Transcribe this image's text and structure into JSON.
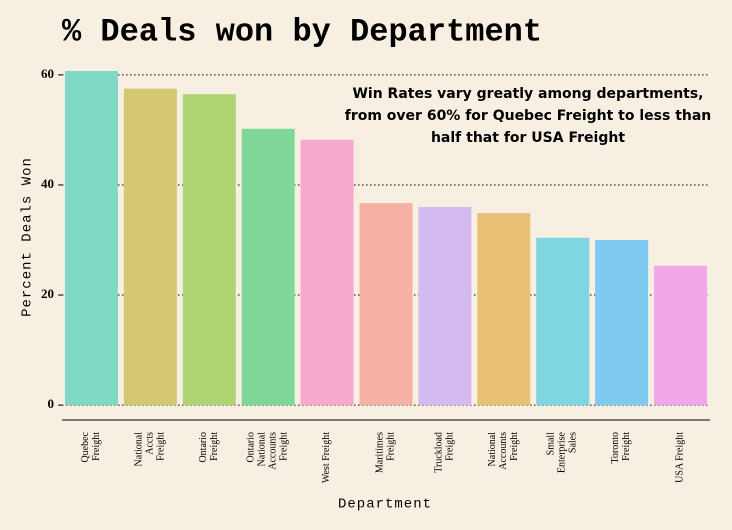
{
  "chart_data": {
    "type": "bar",
    "title": "% Deals won by Department",
    "xlabel": "Department",
    "ylabel": "Percent Deals Won",
    "annotation": [
      "Win Rates vary greatly among departments,",
      "from over 60% for Quebec Freight to less than",
      "half that for USA Freight"
    ],
    "categories": [
      [
        "Quebec",
        "Freight"
      ],
      [
        "National",
        "Accts",
        "Freight"
      ],
      [
        "Ontario",
        "Freight"
      ],
      [
        "Ontario",
        "National",
        "Accounts",
        "Freight"
      ],
      [
        "West Freight"
      ],
      [
        "Maritimes",
        "Freight"
      ],
      [
        "Truckload",
        "Freight"
      ],
      [
        "National",
        "Accounts",
        "Freight"
      ],
      [
        "Small",
        "Enterprise",
        "Sales"
      ],
      [
        "Toronto",
        "Freight"
      ],
      [
        "USA Freight"
      ]
    ],
    "values": [
      60.7,
      57.5,
      56.5,
      50.2,
      48.2,
      36.7,
      36.0,
      34.9,
      30.4,
      30.0,
      25.3
    ],
    "colors": [
      "#7fd9c4",
      "#d4c972",
      "#afd474",
      "#7fd89a",
      "#f8a8cc",
      "#f5b2a4",
      "#d3bbf0",
      "#e8c075",
      "#7dd6e0",
      "#7ecaf0",
      "#f2a8e8"
    ],
    "ylim": [
      -2.7,
      62.7
    ],
    "yticks": [
      0,
      20,
      40,
      60
    ],
    "grid": true
  }
}
